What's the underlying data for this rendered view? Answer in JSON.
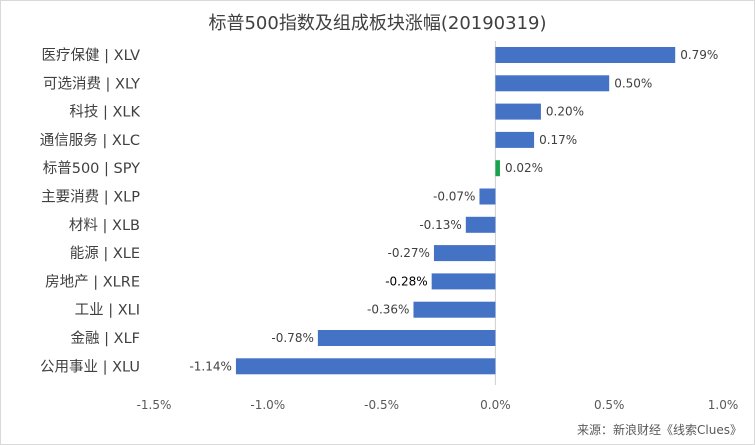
{
  "chart_data": {
    "type": "bar",
    "orientation": "horizontal",
    "title": "标普500指数及组成板块涨幅(20190319)",
    "categories": [
      "医疗保健 | XLV",
      "可选消费 | XLY",
      "科技 | XLK",
      "通信服务 | XLC",
      "标普500 | SPY",
      "主要消费 | XLP",
      "材料 | XLB",
      "能源 | XLE",
      "房地产 | XLRE",
      "工业 | XLI",
      "金融 | XLF",
      "公用事业 | XLU"
    ],
    "values": [
      0.79,
      0.5,
      0.2,
      0.17,
      0.02,
      -0.07,
      -0.13,
      -0.27,
      -0.28,
      -0.36,
      -0.78,
      -1.14
    ],
    "data_labels": [
      "0.79%",
      "0.50%",
      "0.20%",
      "0.17%",
      "0.02%",
      "-0.07%",
      "-0.13%",
      "-0.27%",
      "-0.28%",
      "-0.36%",
      "-0.78%",
      "-1.14%"
    ],
    "xlim": [
      -1.5,
      1.0
    ],
    "xticks": [
      -1.5,
      -1.0,
      -0.5,
      0.0,
      0.5,
      1.0
    ],
    "xtick_labels": [
      "-1.5%",
      "-1.0%",
      "-0.5%",
      "0.0%",
      "0.5%",
      "1.0%"
    ],
    "xlabel": "",
    "ylabel": "",
    "grid": false,
    "legend": "none",
    "bar_color": "#4472c4",
    "highlight_color": "#1aa34a",
    "highlight_category": "标普500 | SPY"
  },
  "source": "来源：新浪财经《线索Clues》"
}
